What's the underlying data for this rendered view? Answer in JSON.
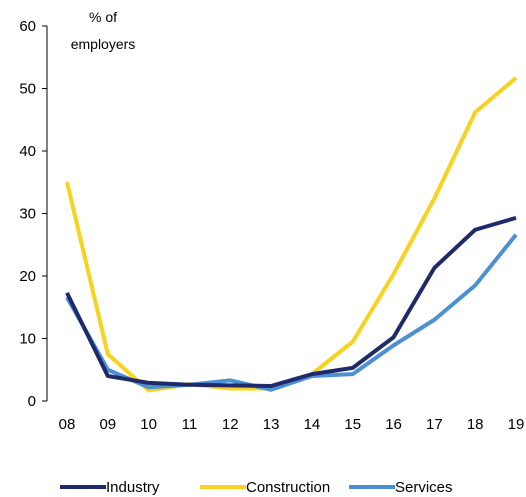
{
  "chart_data": {
    "type": "line",
    "ylabel_lines": [
      "% of",
      "employers"
    ],
    "x": [
      "08",
      "09",
      "10",
      "11",
      "12",
      "13",
      "14",
      "15",
      "16",
      "17",
      "18",
      "19"
    ],
    "ylim": [
      0,
      60
    ],
    "yticks": [
      0,
      10,
      20,
      30,
      40,
      50,
      60
    ],
    "grid": false,
    "legend_position": "bottom",
    "series": [
      {
        "name": "Industry",
        "color": "#1f2a6b",
        "values": [
          17.3,
          4.0,
          2.9,
          2.6,
          2.5,
          2.4,
          4.3,
          5.3,
          10.2,
          21.3,
          27.4,
          29.3
        ]
      },
      {
        "name": "Construction",
        "color": "#f7d21e",
        "values": [
          35.0,
          7.5,
          1.7,
          2.7,
          2.0,
          2.0,
          4.3,
          9.5,
          20.3,
          32.4,
          46.2,
          51.7
        ]
      },
      {
        "name": "Services",
        "color": "#4a90d2",
        "values": [
          16.6,
          5.0,
          2.2,
          2.6,
          3.3,
          1.8,
          4.0,
          4.3,
          8.9,
          13.0,
          18.5,
          26.6
        ]
      }
    ]
  }
}
